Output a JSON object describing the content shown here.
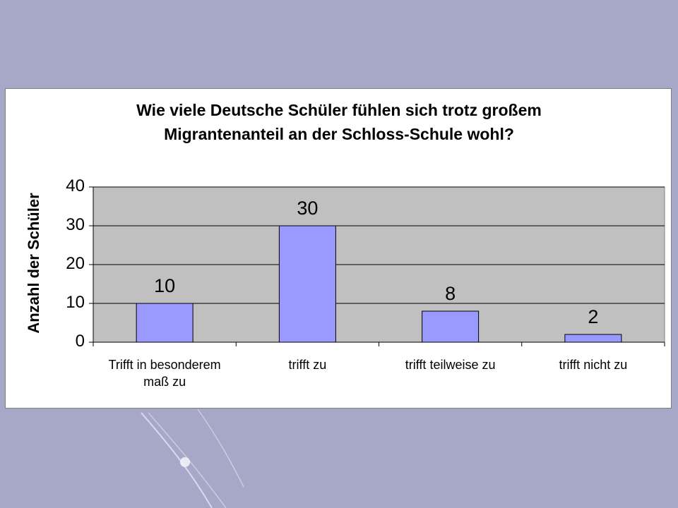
{
  "slide": {
    "background_color": "#a7a7c7"
  },
  "chart_data": {
    "type": "bar",
    "title_line1": "Wie viele Deutsche Schüler fühlen sich trotz großem",
    "title_line2": "Migrantenanteil an der Schloss-Schule wohl?",
    "xlabel": "",
    "ylabel": "Anzahl der Schüler",
    "categories": [
      "Trifft in besonderem maß zu",
      "trifft zu",
      "trifft teilweise zu",
      "trifft nicht zu"
    ],
    "values": [
      10,
      30,
      8,
      2
    ],
    "ylim": [
      0,
      40
    ],
    "yticks": [
      0,
      10,
      20,
      30,
      40
    ],
    "grid": true,
    "plot_area_color": "#c0c0c0",
    "bar_color": "#9999ff",
    "legend": "none"
  }
}
